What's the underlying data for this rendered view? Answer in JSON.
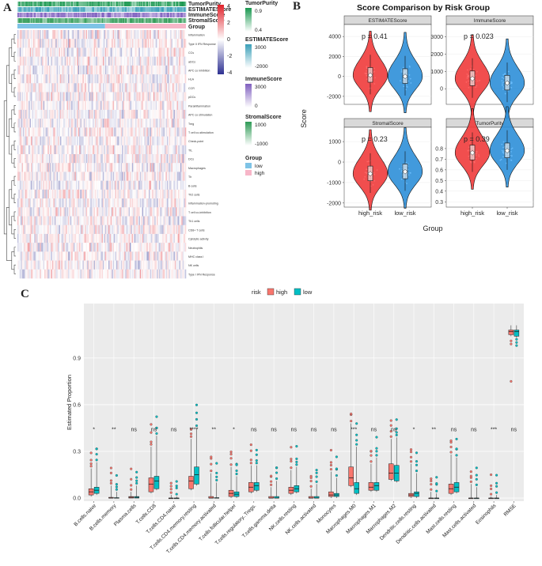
{
  "panel_labels": {
    "a": "A",
    "b": "B",
    "c": "C"
  },
  "colors": {
    "high": "#EF3B3B",
    "low": "#2E8FD8",
    "box_high": "#F8766D",
    "box_low": "#00BFC4",
    "heat_low": "#2E3192",
    "heat_mid": "#FFFFFF",
    "heat_high": "#E0212A",
    "tumor": "#1A9850",
    "estimate": "#3A9FB8",
    "immune": "#7F5FBF",
    "stromal": "#2E9A55",
    "group_low": "#7EC3E6",
    "group_high": "#F7B6C8"
  },
  "chart_data": [
    {
      "type": "heatmap",
      "panel": "A",
      "annotation_tracks": [
        "TumorPurity",
        "ESTIMATEScore",
        "ImmuneScore",
        "StromalScore",
        "Group"
      ],
      "row_labels": [
        "Inflammation",
        "Type II IFN Response",
        "CCs",
        "aDCs",
        "APC co inhibition",
        "HLA",
        "CCR",
        "pDCs",
        "Parainflammation",
        "APC co stimulation",
        "Treg",
        "T cell co-stimulation",
        "Check-point",
        "TIL",
        "DCs",
        "Macrophages",
        "Th",
        "B cells",
        "Th2 cells",
        "Inflammation-promoting",
        "T cell co-inhibition",
        "Th1 cells",
        "CD8+ T cells",
        "Cytolytic activity",
        "Neutrophils",
        "MHC class I",
        "NK cells",
        "Type I IFN Response"
      ],
      "colorbar": {
        "ticks": [
          "4",
          "2",
          "0",
          "-2",
          "-4"
        ]
      },
      "legends": {
        "tumor": {
          "title": "TumorPurity",
          "ticks": [
            "0.9",
            "0.4"
          ]
        },
        "estimate": {
          "title": "ESTIMATEScore",
          "ticks": [
            "3000",
            "-2000"
          ]
        },
        "immune": {
          "title": "ImmuneScore",
          "ticks": [
            "3000",
            "0"
          ]
        },
        "stromal": {
          "title": "StromalScore",
          "ticks": [
            "1000",
            "-1000"
          ]
        },
        "group": {
          "title": "Group",
          "items": [
            "low",
            "high"
          ]
        }
      },
      "groups": [
        "low",
        "high"
      ]
    },
    {
      "type": "violin",
      "panel": "B",
      "title": "Score Comparison by Risk Group",
      "xlabel": "Group",
      "ylabel": "Score",
      "categories": [
        "high_risk",
        "low_risk"
      ],
      "facets": [
        {
          "name": "ESTIMATEScore",
          "p_label": "p = 0.41",
          "ylim": [
            -2800,
            5200
          ],
          "yticks": [
            4000,
            2000,
            0,
            -2000
          ],
          "medians": [
            120,
            0
          ]
        },
        {
          "name": "ImmuneScore",
          "p_label": "p = 0.023",
          "ylim": [
            -900,
            3700
          ],
          "yticks": [
            3000,
            2000,
            1000,
            0
          ],
          "medians": [
            580,
            330
          ]
        },
        {
          "name": "StromalScore",
          "p_label": "p = 0.23",
          "ylim": [
            -2200,
            1700
          ],
          "yticks": [
            1000,
            0,
            -1000,
            -2000
          ],
          "medians": [
            -570,
            -470
          ]
        },
        {
          "name": "TumorPurity",
          "p_label": "p = 0.39",
          "ylim": [
            0.25,
            1.0
          ],
          "yticks": [
            0.8,
            0.7,
            0.6,
            0.5,
            0.4,
            0.3
          ],
          "medians": [
            0.76,
            0.78
          ]
        }
      ]
    },
    {
      "type": "boxplot",
      "panel": "C",
      "ylabel": "Estimated Proportion",
      "ylim": [
        -0.02,
        1.25
      ],
      "yticks": [
        0.0,
        0.3,
        0.6,
        0.9
      ],
      "ytick_labels": [
        "0.0",
        "0.3",
        "0.6",
        "0.9"
      ],
      "legend": {
        "title": "risk",
        "labels": [
          "high",
          "low"
        ]
      },
      "categories": [
        "B.cells.naive",
        "B.cells.memory",
        "Plasma.cells",
        "T.cells.CD8",
        "T.cells.CD4.naive",
        "T.cells.CD4.memory.resting",
        "T.cells.CD4.memory.activated",
        "T.cells.follicular.helper",
        "T.cells.regulatory..Tregs.",
        "T.cells.gamma.delta",
        "NK.cells.resting",
        "NK.cells.activated",
        "Monocytes",
        "Macrophages.M0",
        "Macrophages.M1",
        "Macrophages.M2",
        "Dendritic.cells.resting",
        "Dendritic.cells.activated",
        "Mast.cells.resting",
        "Mast.cells.activated",
        "Eosinophils",
        "RMSE"
      ],
      "significance": [
        "*",
        "**",
        "ns",
        "ns",
        "ns",
        "****",
        "**",
        "*",
        "ns",
        "ns",
        "ns",
        "ns",
        "ns",
        "***",
        "ns",
        "ns",
        "*",
        "**",
        "ns",
        "ns",
        "***",
        "ns"
      ],
      "series": [
        {
          "name": "high",
          "box": [
            [
              0.02,
              0.04,
              0.06,
              0.19
            ],
            [
              0.0,
              0.0,
              0.005,
              0.08
            ],
            [
              0.0,
              0.005,
              0.01,
              0.04
            ],
            [
              0.04,
              0.09,
              0.13,
              0.33
            ],
            [
              0.0,
              0.0,
              0.0,
              0.02
            ],
            [
              0.06,
              0.11,
              0.14,
              0.38
            ],
            [
              0.0,
              0.0,
              0.01,
              0.16
            ],
            [
              0.01,
              0.03,
              0.05,
              0.2
            ],
            [
              0.04,
              0.07,
              0.1,
              0.21
            ],
            [
              0.0,
              0.0,
              0.01,
              0.07
            ],
            [
              0.03,
              0.05,
              0.07,
              0.18
            ],
            [
              0.0,
              0.0,
              0.01,
              0.06
            ],
            [
              0.01,
              0.02,
              0.04,
              0.17
            ],
            [
              0.08,
              0.13,
              0.2,
              0.48
            ],
            [
              0.05,
              0.07,
              0.1,
              0.22
            ],
            [
              0.12,
              0.16,
              0.22,
              0.38
            ],
            [
              0.01,
              0.02,
              0.03,
              0.22
            ],
            [
              0.0,
              0.0,
              0.0,
              0.04
            ],
            [
              0.03,
              0.06,
              0.09,
              0.28
            ],
            [
              0.0,
              0.0,
              0.0,
              0.09
            ],
            [
              0.0,
              0.0,
              0.0,
              0.01
            ],
            [
              1.05,
              1.07,
              1.08,
              1.11
            ]
          ]
        },
        {
          "name": "low",
          "box": [
            [
              0.03,
              0.05,
              0.07,
              0.23
            ],
            [
              0.0,
              0.0,
              0.003,
              0.04
            ],
            [
              0.0,
              0.005,
              0.01,
              0.08
            ],
            [
              0.06,
              0.11,
              0.14,
              0.4
            ],
            [
              0.0,
              0.0,
              0.0,
              0.01
            ],
            [
              0.09,
              0.15,
              0.2,
              0.45
            ],
            [
              0.0,
              0.0,
              0.003,
              0.1
            ],
            [
              0.01,
              0.025,
              0.04,
              0.14
            ],
            [
              0.05,
              0.08,
              0.1,
              0.21
            ],
            [
              0.0,
              0.0,
              0.01,
              0.11
            ],
            [
              0.04,
              0.06,
              0.08,
              0.2
            ],
            [
              0.0,
              0.0,
              0.01,
              0.09
            ],
            [
              0.01,
              0.02,
              0.03,
              0.13
            ],
            [
              0.03,
              0.06,
              0.1,
              0.33
            ],
            [
              0.05,
              0.08,
              0.1,
              0.26
            ],
            [
              0.11,
              0.16,
              0.21,
              0.39
            ],
            [
              0.01,
              0.03,
              0.04,
              0.16
            ],
            [
              0.0,
              0.0,
              0.0,
              0.03
            ],
            [
              0.04,
              0.07,
              0.1,
              0.26
            ],
            [
              0.0,
              0.0,
              0.0,
              0.07
            ],
            [
              0.0,
              0.0,
              0.0,
              0.02
            ],
            [
              1.04,
              1.07,
              1.08,
              1.11
            ]
          ]
        }
      ]
    }
  ]
}
